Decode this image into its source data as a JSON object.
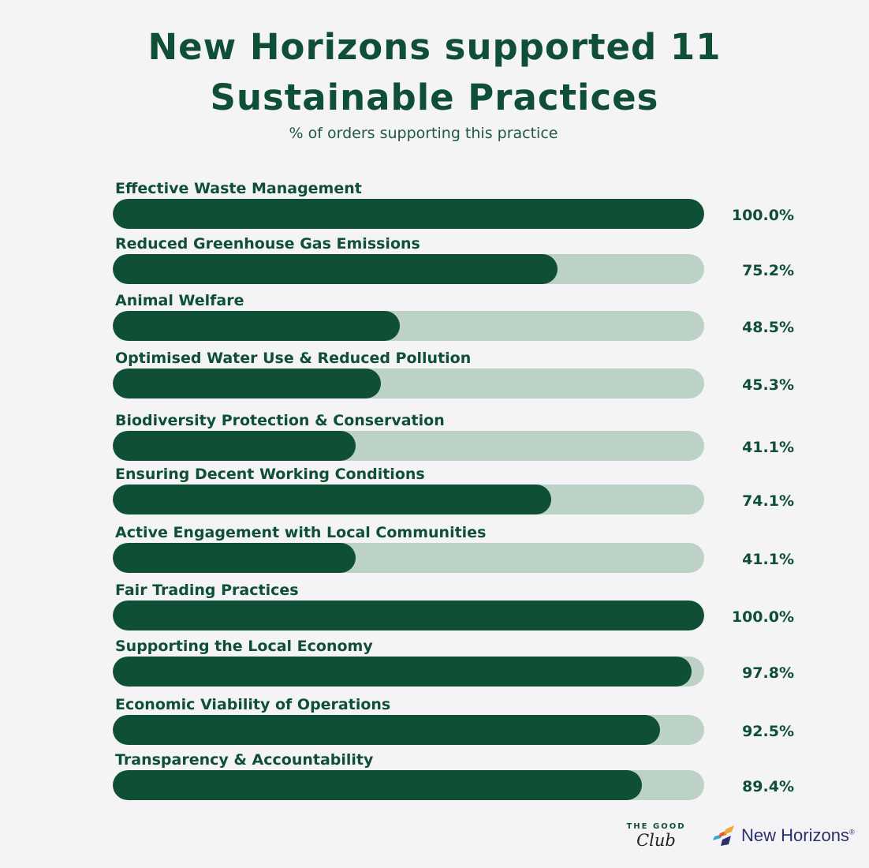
{
  "header": {
    "title_line1": "New Horizons supported 11",
    "title_line2": "Sustainable Practices",
    "subtitle": "% of orders supporting this practice"
  },
  "chart_data": {
    "type": "bar",
    "orientation": "horizontal",
    "title": "New Horizons supported 11 Sustainable Practices",
    "subtitle": "% of orders supporting this practice",
    "xlim": [
      0,
      100
    ],
    "categories": [
      "Effective Waste Management",
      "Reduced Greenhouse Gas Emissions",
      "Animal Welfare",
      "Optimised Water Use & Reduced Pollution",
      "Biodiversity Protection & Conservation",
      "Ensuring Decent Working Conditions",
      "Active Engagement with Local Communities",
      "Fair Trading Practices",
      "Supporting the Local Economy",
      "Economic Viability of Operations",
      "Transparency & Accountability"
    ],
    "values": [
      100.0,
      75.2,
      48.5,
      45.3,
      41.1,
      74.1,
      41.1,
      100.0,
      97.8,
      92.5,
      89.4
    ],
    "value_labels": [
      "100.0%",
      "75.2%",
      "48.5%",
      "45.3%",
      "41.1%",
      "74.1%",
      "41.1%",
      "100.0%",
      "97.8%",
      "92.5%",
      "89.4%"
    ],
    "colors": {
      "bar": "#0f4f35",
      "track": "#bdd2c7",
      "text": "#0f4f35"
    }
  },
  "footer": {
    "logo_good_top": "THE GOOD",
    "logo_good_bottom": "Club",
    "logo_nh": "New Horizons",
    "logo_nh_mark": "®"
  }
}
